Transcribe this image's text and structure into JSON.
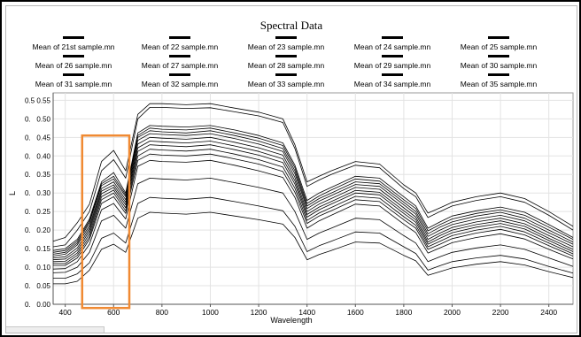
{
  "chart_data": {
    "type": "line",
    "title": "Spectral Data",
    "xlabel": "Wavelength",
    "ylabel": "L",
    "xlim": [
      350,
      2500
    ],
    "ylim": [
      0,
      0.57
    ],
    "x_ticks": [
      400,
      600,
      800,
      1000,
      1200,
      1400,
      1600,
      1800,
      2000,
      2200,
      2400
    ],
    "y_ticks": [
      0.0,
      0.05,
      0.1,
      0.15,
      0.2,
      0.25,
      0.3,
      0.35,
      0.4,
      0.45,
      0.5,
      0.55
    ],
    "y_tick_labels": [
      "0.00",
      "0.05",
      "0.10",
      "0.15",
      "0.20",
      "0.25",
      "0.30",
      "0.35",
      "0.40",
      "0.45",
      "0.50",
      "0.55"
    ],
    "outer_y_labels": [
      "0.",
      "0.",
      "0.",
      "0.",
      "0.",
      "0.",
      "0.",
      "0.",
      "0.",
      "0.",
      "0.",
      "0.5"
    ],
    "grid": true,
    "legend_placement": "top",
    "series_color": "#000000",
    "highlight": {
      "x_range": [
        470,
        665
      ],
      "y_range": [
        -0.01,
        0.455
      ],
      "color": "#f08a33"
    },
    "x": [
      350,
      400,
      450,
      500,
      550,
      600,
      650,
      700,
      750,
      800,
      900,
      1000,
      1100,
      1200,
      1300,
      1350,
      1400,
      1450,
      1500,
      1600,
      1700,
      1800,
      1850,
      1900,
      1950,
      2000,
      2100,
      2200,
      2300,
      2400,
      2500
    ],
    "series": [
      {
        "name": "Mean of 21st sample.mn",
        "values": [
          0.17,
          0.18,
          0.22,
          0.27,
          0.385,
          0.415,
          0.36,
          0.512,
          0.541,
          0.541,
          0.538,
          0.541,
          0.529,
          0.518,
          0.5,
          0.43,
          0.33,
          0.345,
          0.36,
          0.385,
          0.378,
          0.322,
          0.3,
          0.246,
          0.26,
          0.275,
          0.29,
          0.3,
          0.285,
          0.25,
          0.21
        ]
      },
      {
        "name": "Mean of 22 sample.mn",
        "values": [
          0.155,
          0.16,
          0.2,
          0.25,
          0.36,
          0.39,
          0.34,
          0.5,
          0.531,
          0.531,
          0.528,
          0.53,
          0.519,
          0.508,
          0.49,
          0.42,
          0.318,
          0.335,
          0.35,
          0.375,
          0.368,
          0.312,
          0.29,
          0.234,
          0.25,
          0.265,
          0.28,
          0.29,
          0.275,
          0.24,
          0.2
        ]
      },
      {
        "name": "Mean of 23 sample.mn",
        "values": [
          0.145,
          0.15,
          0.175,
          0.23,
          0.33,
          0.355,
          0.3,
          0.462,
          0.482,
          0.48,
          0.478,
          0.482,
          0.47,
          0.455,
          0.435,
          0.375,
          0.28,
          0.3,
          0.315,
          0.345,
          0.34,
          0.29,
          0.265,
          0.205,
          0.222,
          0.238,
          0.252,
          0.262,
          0.248,
          0.215,
          0.18
        ]
      },
      {
        "name": "Mean of 24 sample.mn",
        "values": [
          0.14,
          0.145,
          0.17,
          0.225,
          0.325,
          0.345,
          0.295,
          0.455,
          0.475,
          0.472,
          0.47,
          0.475,
          0.462,
          0.448,
          0.428,
          0.368,
          0.272,
          0.292,
          0.308,
          0.338,
          0.332,
          0.282,
          0.258,
          0.198,
          0.215,
          0.23,
          0.245,
          0.255,
          0.24,
          0.208,
          0.175
        ]
      },
      {
        "name": "Mean of 25 sample.mn",
        "values": [
          0.135,
          0.14,
          0.165,
          0.22,
          0.32,
          0.338,
          0.29,
          0.45,
          0.468,
          0.465,
          0.462,
          0.468,
          0.455,
          0.44,
          0.42,
          0.36,
          0.265,
          0.285,
          0.3,
          0.33,
          0.325,
          0.275,
          0.25,
          0.19,
          0.208,
          0.222,
          0.238,
          0.248,
          0.232,
          0.2,
          0.168
        ]
      },
      {
        "name": "Mean of 26 sample.mn",
        "values": [
          0.13,
          0.135,
          0.16,
          0.212,
          0.312,
          0.33,
          0.282,
          0.442,
          0.46,
          0.458,
          0.455,
          0.46,
          0.447,
          0.432,
          0.412,
          0.352,
          0.258,
          0.278,
          0.293,
          0.323,
          0.318,
          0.268,
          0.243,
          0.183,
          0.2,
          0.215,
          0.23,
          0.24,
          0.225,
          0.193,
          0.162
        ]
      },
      {
        "name": "Mean of 27 sample.mn",
        "values": [
          0.125,
          0.128,
          0.152,
          0.205,
          0.305,
          0.322,
          0.275,
          0.432,
          0.45,
          0.448,
          0.445,
          0.45,
          0.437,
          0.422,
          0.402,
          0.342,
          0.25,
          0.27,
          0.285,
          0.315,
          0.31,
          0.26,
          0.235,
          0.175,
          0.192,
          0.207,
          0.222,
          0.232,
          0.217,
          0.185,
          0.155
        ]
      },
      {
        "name": "Mean of 28 sample.mn",
        "values": [
          0.12,
          0.122,
          0.145,
          0.198,
          0.298,
          0.315,
          0.268,
          0.422,
          0.44,
          0.438,
          0.435,
          0.44,
          0.427,
          0.412,
          0.392,
          0.333,
          0.242,
          0.262,
          0.277,
          0.307,
          0.302,
          0.252,
          0.228,
          0.168,
          0.185,
          0.2,
          0.215,
          0.225,
          0.21,
          0.178,
          0.148
        ]
      },
      {
        "name": "Mean of 29 sample.mn",
        "values": [
          0.115,
          0.116,
          0.138,
          0.19,
          0.29,
          0.308,
          0.26,
          0.412,
          0.43,
          0.428,
          0.425,
          0.43,
          0.417,
          0.402,
          0.382,
          0.324,
          0.235,
          0.255,
          0.27,
          0.3,
          0.295,
          0.245,
          0.221,
          0.162,
          0.178,
          0.193,
          0.208,
          0.218,
          0.203,
          0.172,
          0.142
        ]
      },
      {
        "name": "Mean of 30 sample.mn",
        "values": [
          0.11,
          0.11,
          0.132,
          0.182,
          0.282,
          0.3,
          0.252,
          0.4,
          0.418,
          0.416,
          0.413,
          0.418,
          0.405,
          0.39,
          0.37,
          0.313,
          0.226,
          0.246,
          0.261,
          0.291,
          0.286,
          0.236,
          0.213,
          0.155,
          0.17,
          0.185,
          0.2,
          0.21,
          0.195,
          0.165,
          0.136
        ]
      },
      {
        "name": "Mean of 31 sample.mn",
        "values": [
          0.105,
          0.105,
          0.125,
          0.175,
          0.272,
          0.29,
          0.245,
          0.388,
          0.405,
          0.402,
          0.4,
          0.405,
          0.392,
          0.378,
          0.358,
          0.302,
          0.218,
          0.238,
          0.252,
          0.282,
          0.277,
          0.228,
          0.205,
          0.148,
          0.162,
          0.177,
          0.192,
          0.202,
          0.187,
          0.158,
          0.13
        ]
      },
      {
        "name": "Mean of 32 sample.mn",
        "values": [
          0.095,
          0.096,
          0.115,
          0.162,
          0.255,
          0.272,
          0.23,
          0.372,
          0.388,
          0.385,
          0.383,
          0.388,
          0.375,
          0.36,
          0.342,
          0.288,
          0.205,
          0.225,
          0.24,
          0.27,
          0.265,
          0.216,
          0.193,
          0.138,
          0.152,
          0.166,
          0.18,
          0.19,
          0.176,
          0.148,
          0.122
        ]
      },
      {
        "name": "Mean of 33 sample.mn",
        "values": [
          0.085,
          0.086,
          0.1,
          0.14,
          0.225,
          0.24,
          0.205,
          0.325,
          0.34,
          0.338,
          0.335,
          0.34,
          0.328,
          0.315,
          0.3,
          0.25,
          0.175,
          0.192,
          0.205,
          0.232,
          0.228,
          0.185,
          0.165,
          0.115,
          0.128,
          0.14,
          0.152,
          0.16,
          0.148,
          0.125,
          0.102
        ]
      },
      {
        "name": "Mean of 34 sample.mn",
        "values": [
          0.07,
          0.07,
          0.082,
          0.112,
          0.178,
          0.192,
          0.165,
          0.272,
          0.288,
          0.286,
          0.283,
          0.288,
          0.277,
          0.265,
          0.252,
          0.21,
          0.142,
          0.158,
          0.17,
          0.195,
          0.192,
          0.155,
          0.137,
          0.092,
          0.104,
          0.115,
          0.125,
          0.132,
          0.122,
          0.102,
          0.084
        ]
      },
      {
        "name": "Mean of 35 sample.mn",
        "values": [
          0.055,
          0.055,
          0.062,
          0.092,
          0.148,
          0.162,
          0.14,
          0.232,
          0.248,
          0.246,
          0.243,
          0.248,
          0.238,
          0.228,
          0.216,
          0.18,
          0.12,
          0.134,
          0.145,
          0.168,
          0.165,
          0.132,
          0.117,
          0.078,
          0.088,
          0.098,
          0.108,
          0.115,
          0.106,
          0.088,
          0.072
        ]
      }
    ]
  }
}
